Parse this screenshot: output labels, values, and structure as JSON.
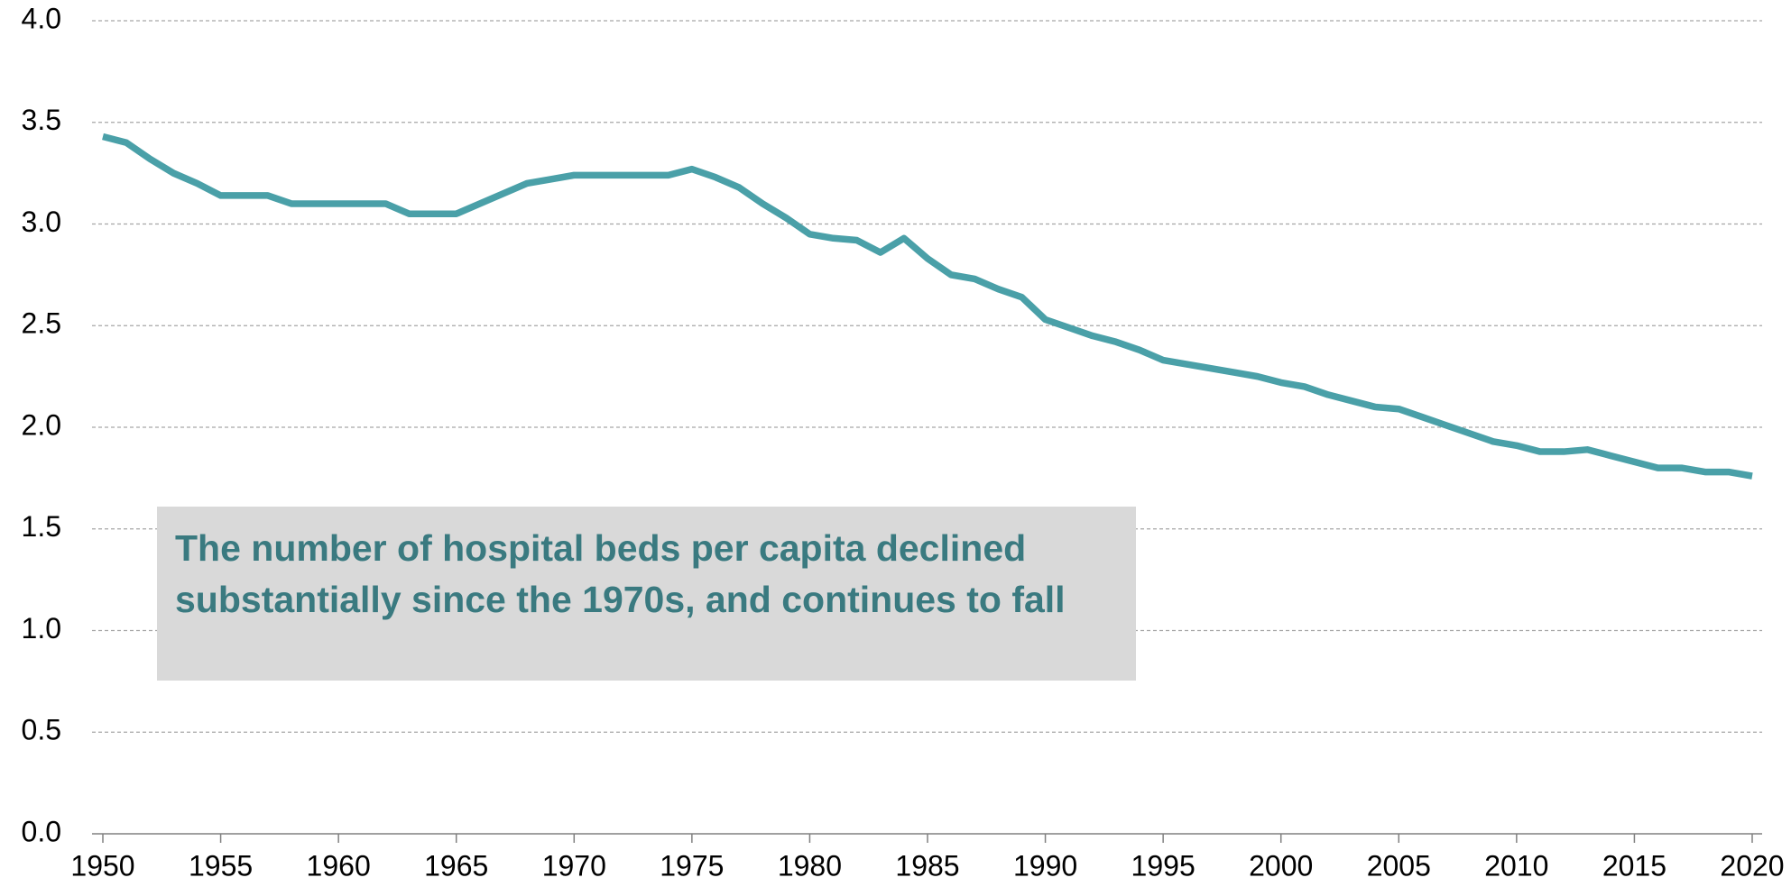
{
  "chart_data": {
    "type": "line",
    "annotation": "The number of hospital beds per capita declined substantially since the 1970s, and continues to fall",
    "x": [
      1950,
      1951,
      1952,
      1953,
      1954,
      1955,
      1956,
      1957,
      1958,
      1959,
      1960,
      1961,
      1962,
      1963,
      1964,
      1965,
      1966,
      1967,
      1968,
      1969,
      1970,
      1971,
      1972,
      1973,
      1974,
      1975,
      1976,
      1977,
      1978,
      1979,
      1980,
      1981,
      1982,
      1983,
      1984,
      1985,
      1986,
      1987,
      1988,
      1989,
      1990,
      1991,
      1992,
      1993,
      1994,
      1995,
      1996,
      1997,
      1998,
      1999,
      2000,
      2001,
      2002,
      2003,
      2004,
      2005,
      2006,
      2007,
      2008,
      2009,
      2010,
      2011,
      2012,
      2013,
      2014,
      2015,
      2016,
      2017,
      2018,
      2019,
      2020
    ],
    "series": [
      {
        "color": "#4aa0a8",
        "values": [
          3.43,
          3.4,
          3.32,
          3.25,
          3.2,
          3.14,
          3.14,
          3.14,
          3.1,
          3.1,
          3.1,
          3.1,
          3.1,
          3.05,
          3.05,
          3.05,
          3.1,
          3.15,
          3.2,
          3.22,
          3.24,
          3.24,
          3.24,
          3.24,
          3.24,
          3.27,
          3.23,
          3.18,
          3.1,
          3.03,
          2.95,
          2.93,
          2.92,
          2.86,
          2.93,
          2.83,
          2.75,
          2.73,
          2.68,
          2.64,
          2.53,
          2.49,
          2.45,
          2.42,
          2.38,
          2.33,
          2.31,
          2.29,
          2.27,
          2.25,
          2.22,
          2.2,
          2.16,
          2.13,
          2.1,
          2.09,
          2.05,
          2.01,
          1.97,
          1.93,
          1.91,
          1.88,
          1.88,
          1.89,
          1.86,
          1.83,
          1.8,
          1.8,
          1.78,
          1.78,
          1.76
        ]
      }
    ],
    "xlim": [
      1950,
      2020
    ],
    "xticks": [
      1950,
      1955,
      1960,
      1965,
      1970,
      1975,
      1980,
      1985,
      1990,
      1995,
      2000,
      2005,
      2010,
      2015,
      2020
    ],
    "ylim": [
      0,
      4
    ],
    "yticks": [
      {
        "value": 0,
        "label": "0.0"
      },
      {
        "value": 0.5,
        "label": "0.5"
      },
      {
        "value": 1,
        "label": "1.0"
      },
      {
        "value": 1.5,
        "label": "1.5"
      },
      {
        "value": 2,
        "label": "2.0"
      },
      {
        "value": 2.5,
        "label": "2.5"
      },
      {
        "value": 3,
        "label": "3.0"
      },
      {
        "value": 3.5,
        "label": "3.5"
      },
      {
        "value": 4,
        "label": "4.0"
      }
    ],
    "grid": true
  }
}
